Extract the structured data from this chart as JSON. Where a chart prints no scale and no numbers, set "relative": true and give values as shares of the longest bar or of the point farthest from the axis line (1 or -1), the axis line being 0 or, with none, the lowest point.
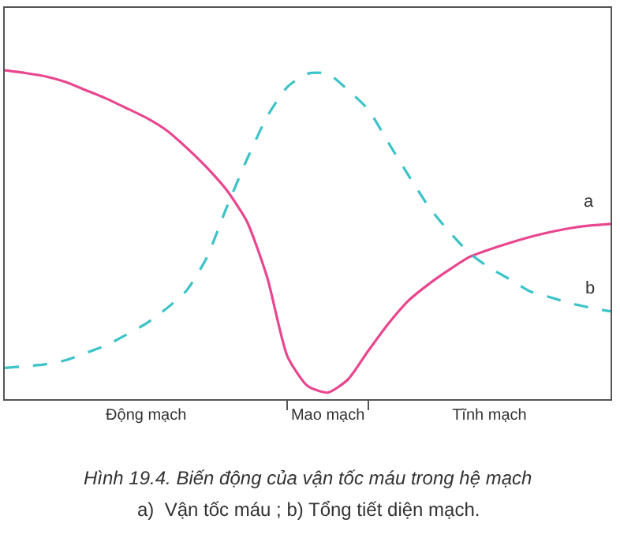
{
  "chart_data": {
    "type": "line",
    "relative": true,
    "title": "Hình 19.4. Biến động của vận tốc máu trong hệ mạch",
    "subtitle": "a)  Vận tốc máu ; b) Tổng tiết diện mạch.",
    "categories": [
      null,
      null,
      null,
      null,
      null,
      null,
      null,
      "Động mạch",
      null,
      null,
      null,
      null,
      null,
      null,
      null,
      null,
      "Mao mạch",
      null,
      null,
      null,
      null,
      null,
      null,
      null,
      "Tĩnh mạch",
      null,
      null,
      null,
      null,
      null,
      null
    ],
    "marker": "none",
    "legend": false,
    "series": [
      {
        "name": "a",
        "color": "#e8468f",
        "line_style": "solid",
        "values": [
          1.0,
          0.992,
          0.982,
          0.965,
          0.94,
          0.915,
          0.886,
          0.856,
          0.818,
          0.765,
          0.705,
          0.635,
          0.54,
          0.37,
          0.13,
          0.04,
          0.02,
          0.06,
          0.147,
          0.23,
          0.3,
          0.35,
          0.393,
          0.432,
          0.455,
          0.475,
          0.493,
          0.508,
          0.52,
          0.528,
          0.533
        ]
      },
      {
        "name": "b",
        "color": "#3cc3c8",
        "line_style": "dashed",
        "values": [
          0.095,
          0.1,
          0.106,
          0.118,
          0.14,
          0.163,
          0.195,
          0.23,
          0.275,
          0.33,
          0.43,
          0.585,
          0.73,
          0.86,
          0.95,
          0.99,
          0.99,
          0.94,
          0.881,
          0.78,
          0.68,
          0.585,
          0.51,
          0.445,
          0.4,
          0.365,
          0.328,
          0.31,
          0.292,
          0.278,
          0.267
        ]
      }
    ]
  }
}
